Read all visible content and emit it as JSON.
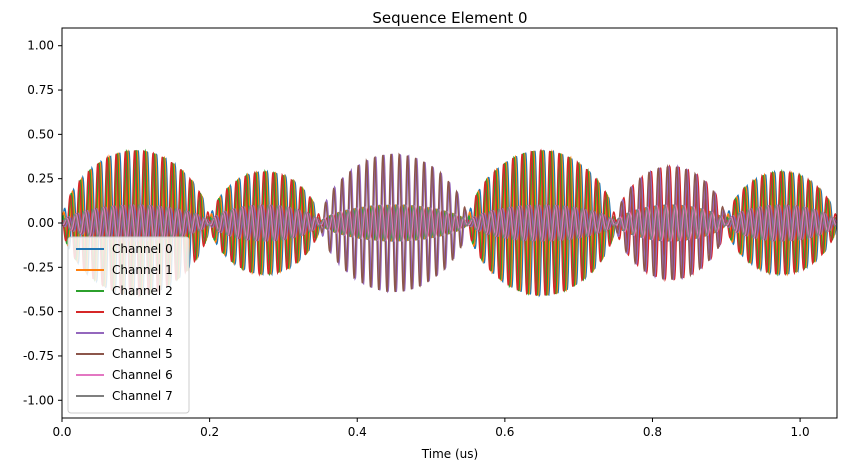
{
  "chart_data": {
    "type": "line",
    "title": "Sequence Element 0",
    "xlabel": "Time (us)",
    "ylabel": "",
    "xlim": [
      0.0,
      1.05
    ],
    "ylim": [
      -1.1,
      1.1
    ],
    "xticks": [
      "0.0",
      "0.2",
      "0.4",
      "0.6",
      "0.8",
      "1.0"
    ],
    "xtick_values": [
      0.0,
      0.2,
      0.4,
      0.6,
      0.8,
      1.0
    ],
    "yticks": [
      "-1.00",
      "-0.75",
      "-0.50",
      "-0.25",
      "0.00",
      "0.25",
      "0.50",
      "0.75",
      "1.00"
    ],
    "ytick_values": [
      -1.0,
      -0.75,
      -0.5,
      -0.25,
      0.0,
      0.25,
      0.5,
      0.75,
      1.0
    ],
    "grid": false,
    "legend_position": "lower-left",
    "pulses": [
      {
        "start": 0.0,
        "end": 0.2,
        "amplitude": 0.41,
        "channels": [
          0,
          1,
          2,
          3
        ],
        "cycles": 16
      },
      {
        "start": 0.2,
        "end": 0.35,
        "amplitude": 0.29,
        "channels": [
          0,
          1,
          2,
          3
        ],
        "cycles": 12
      },
      {
        "start": 0.35,
        "end": 0.55,
        "amplitude": 0.39,
        "channels": [
          4,
          5
        ],
        "cycles": 18
      },
      {
        "start": 0.55,
        "end": 0.75,
        "amplitude": 0.41,
        "channels": [
          0,
          1,
          2,
          3
        ],
        "cycles": 16
      },
      {
        "start": 0.75,
        "end": 0.9,
        "amplitude": 0.32,
        "channels": [
          3,
          4,
          5
        ],
        "cycles": 12
      },
      {
        "start": 0.9,
        "end": 1.05,
        "amplitude": 0.29,
        "channels": [
          0,
          1,
          2,
          3
        ],
        "cycles": 12
      }
    ],
    "background_amplitude": 0.1,
    "series": [
      {
        "name": "Channel 0",
        "color": "#1f77b4"
      },
      {
        "name": "Channel 1",
        "color": "#ff7f0e"
      },
      {
        "name": "Channel 2",
        "color": "#2ca02c"
      },
      {
        "name": "Channel 3",
        "color": "#d62728"
      },
      {
        "name": "Channel 4",
        "color": "#9467bd"
      },
      {
        "name": "Channel 5",
        "color": "#8c564b"
      },
      {
        "name": "Channel 6",
        "color": "#e377c2"
      },
      {
        "name": "Channel 7",
        "color": "#7f7f7f"
      }
    ]
  }
}
